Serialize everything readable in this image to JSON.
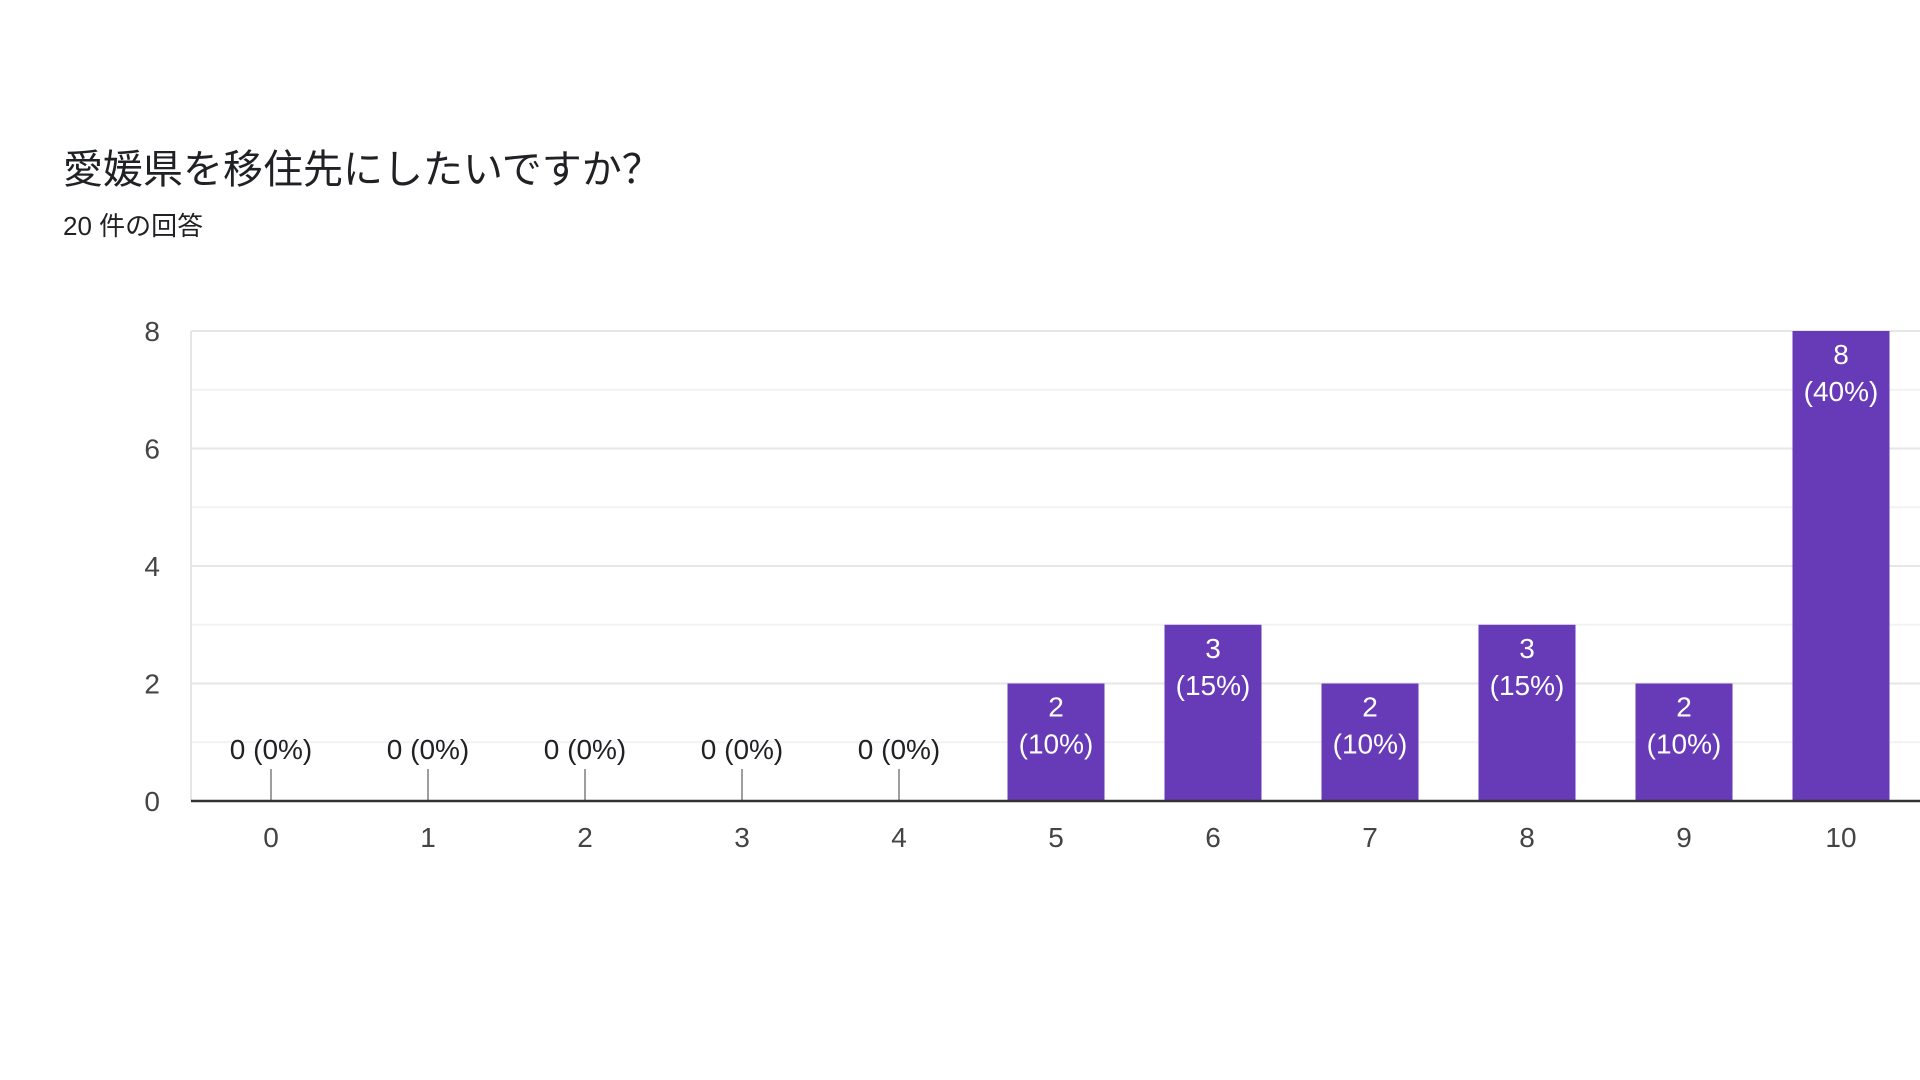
{
  "header": {
    "title": "愛媛県を移住先にしたいですか？",
    "subtitle": "20 件の回答"
  },
  "colors": {
    "bar": "#673ab7",
    "grid_major": "#e6e6e6",
    "grid_minor": "#f2f2f2",
    "axis": "#333333",
    "zero_tick": "#9e9e9e"
  },
  "chart_data": {
    "type": "bar",
    "title": "愛媛県を移住先にしたいですか？",
    "subtitle": "20 件の回答",
    "xlabel": "",
    "ylabel": "",
    "categories": [
      "0",
      "1",
      "2",
      "3",
      "4",
      "5",
      "6",
      "7",
      "8",
      "9",
      "10"
    ],
    "values": [
      0,
      0,
      0,
      0,
      0,
      2,
      3,
      2,
      3,
      2,
      8
    ],
    "percent_labels": [
      "0%",
      "0%",
      "0%",
      "0%",
      "0%",
      "10%",
      "15%",
      "10%",
      "15%",
      "10%",
      "40%"
    ],
    "ylim": [
      0,
      8
    ],
    "yticks": [
      0,
      2,
      4,
      6,
      8
    ],
    "grid": true,
    "legend": "none"
  }
}
